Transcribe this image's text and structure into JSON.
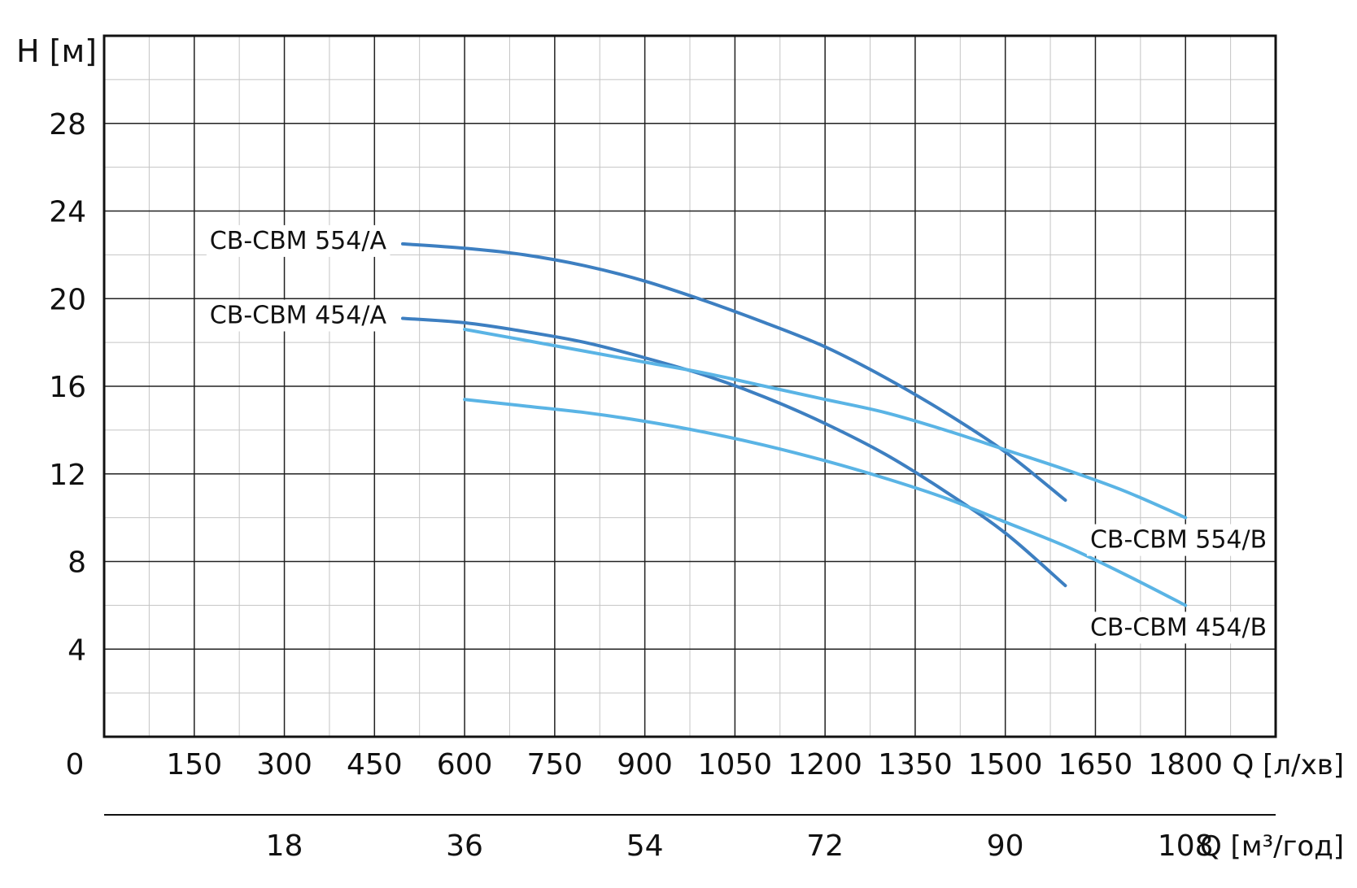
{
  "chart_data": {
    "type": "line",
    "y_axis": {
      "label": "H [м]",
      "range": [
        0,
        32
      ],
      "major_ticks": [
        4,
        8,
        12,
        16,
        20,
        24,
        28
      ],
      "minor_step": 2
    },
    "x_axis": {
      "label": "Q [л/хв]",
      "range": [
        0,
        1950
      ],
      "origin_label": "0",
      "major_ticks": [
        150,
        300,
        450,
        600,
        750,
        900,
        1050,
        1200,
        1350,
        1500,
        1650,
        1800
      ],
      "minor_step": 75
    },
    "x_axis_secondary": {
      "label": "Q [м³/год]",
      "ticks": [
        18,
        36,
        54,
        72,
        90,
        108
      ]
    },
    "grid": true,
    "series": [
      {
        "name": "CB-CBM 554/A",
        "color": "#3d7fc1",
        "points": [
          [
            497,
            22.5
          ],
          [
            600,
            22.3
          ],
          [
            700,
            22.0
          ],
          [
            800,
            21.5
          ],
          [
            900,
            20.8
          ],
          [
            1000,
            19.9
          ],
          [
            1100,
            18.9
          ],
          [
            1200,
            17.8
          ],
          [
            1300,
            16.4
          ],
          [
            1400,
            14.8
          ],
          [
            1500,
            13.0
          ],
          [
            1600,
            10.8
          ]
        ]
      },
      {
        "name": "CB-CBM 454/A",
        "color": "#3d7fc1",
        "points": [
          [
            497,
            19.1
          ],
          [
            600,
            18.9
          ],
          [
            700,
            18.5
          ],
          [
            800,
            18.0
          ],
          [
            900,
            17.3
          ],
          [
            1000,
            16.5
          ],
          [
            1100,
            15.5
          ],
          [
            1200,
            14.3
          ],
          [
            1300,
            12.9
          ],
          [
            1400,
            11.2
          ],
          [
            1500,
            9.3
          ],
          [
            1600,
            6.9
          ]
        ]
      },
      {
        "name": "CB-CBM 554/B",
        "color": "#5ab4e5",
        "points": [
          [
            600,
            18.6
          ],
          [
            700,
            18.1
          ],
          [
            800,
            17.6
          ],
          [
            900,
            17.1
          ],
          [
            1000,
            16.6
          ],
          [
            1100,
            16.0
          ],
          [
            1200,
            15.4
          ],
          [
            1300,
            14.8
          ],
          [
            1400,
            14.0
          ],
          [
            1500,
            13.1
          ],
          [
            1600,
            12.2
          ],
          [
            1700,
            11.2
          ],
          [
            1800,
            10.0
          ]
        ]
      },
      {
        "name": "CB-CBM 454/B",
        "color": "#5ab4e5",
        "points": [
          [
            600,
            15.4
          ],
          [
            700,
            15.1
          ],
          [
            800,
            14.8
          ],
          [
            900,
            14.4
          ],
          [
            1000,
            13.9
          ],
          [
            1100,
            13.3
          ],
          [
            1200,
            12.6
          ],
          [
            1300,
            11.8
          ],
          [
            1400,
            10.9
          ],
          [
            1500,
            9.8
          ],
          [
            1600,
            8.7
          ],
          [
            1700,
            7.4
          ],
          [
            1800,
            6.0
          ]
        ]
      }
    ]
  }
}
